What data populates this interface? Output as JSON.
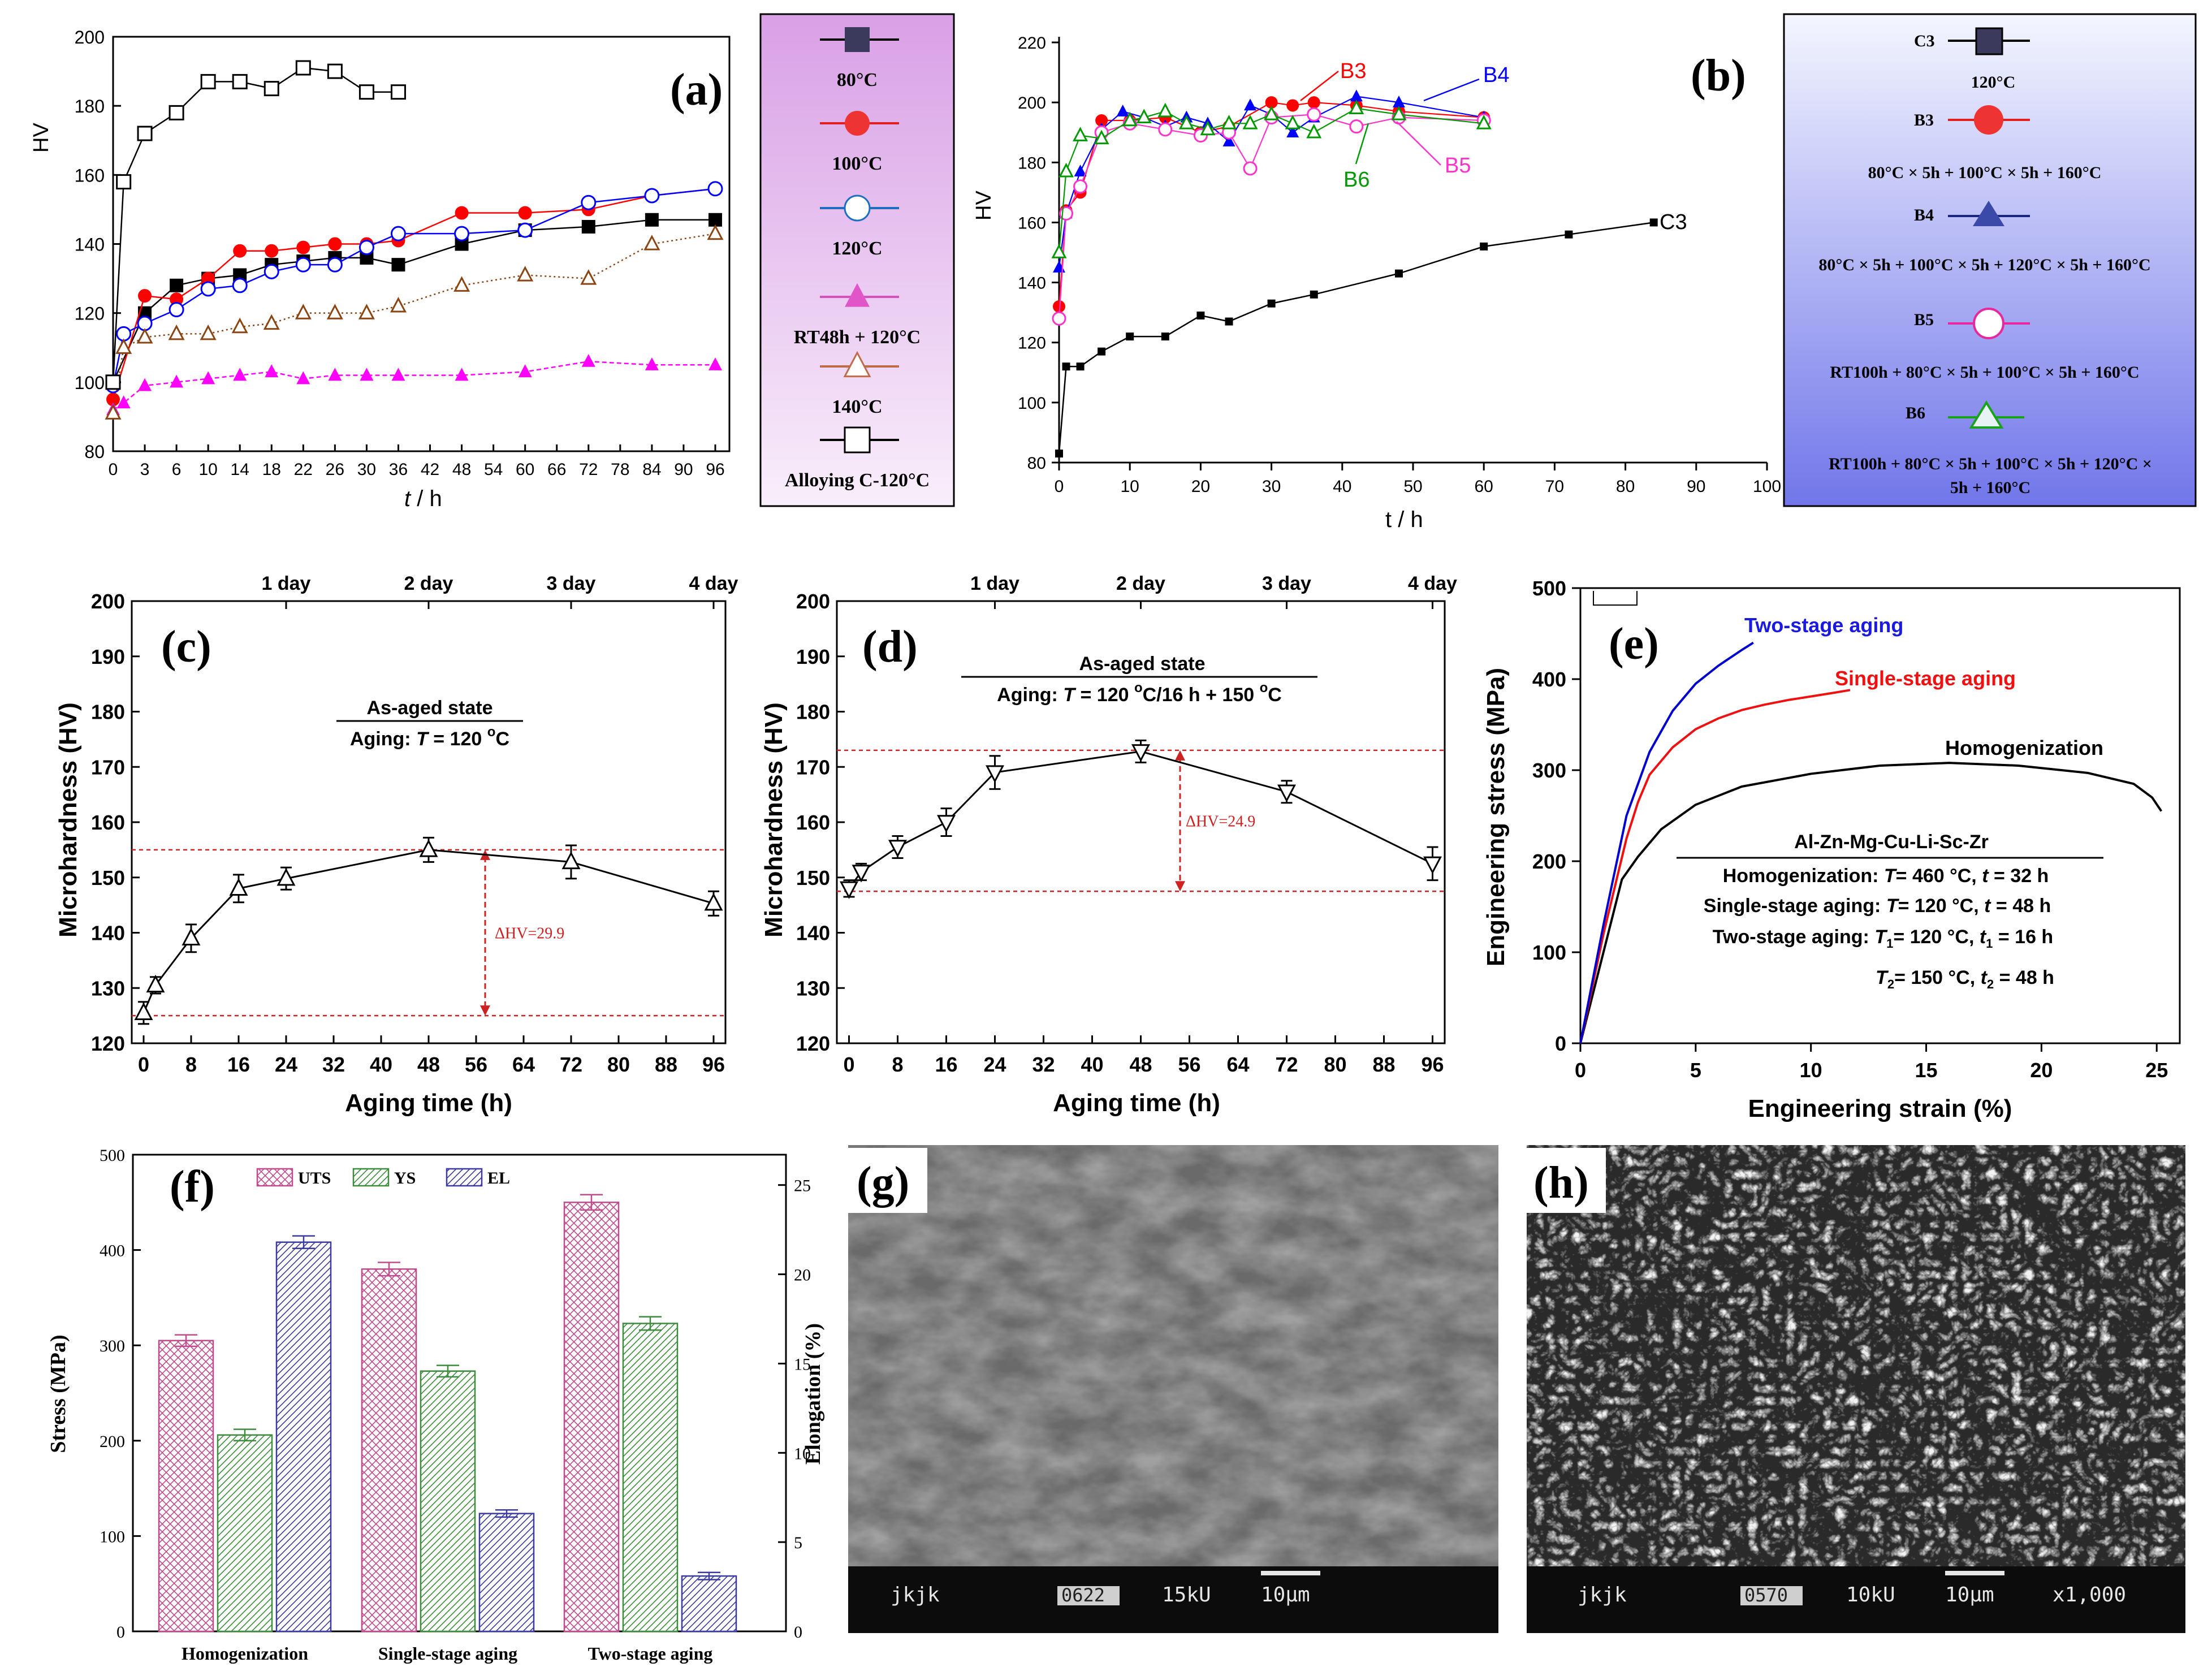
{
  "panels": {
    "a": {
      "label": "(a)",
      "ylabel": "HV",
      "xlabel_t": "t",
      "xlabel_rest": " / h",
      "xticks": [
        "0",
        "3",
        "6",
        "10",
        "14",
        "18",
        "22",
        "26",
        "30",
        "36",
        "42",
        "48",
        "54",
        "60",
        "66",
        "72",
        "78",
        "84",
        "90",
        "96"
      ],
      "yticks": [
        "80",
        "100",
        "120",
        "140",
        "160",
        "180",
        "200"
      ],
      "legend": [
        "80°C",
        "100°C",
        "120°C",
        "RT48h + 120°C",
        "140°C",
        "Alloying C-120°C"
      ],
      "legend_bg": [
        "#d9a0e6",
        "#f9eefb"
      ]
    },
    "b": {
      "label": "(b)",
      "ylabel": "HV",
      "xlabel": "t / h",
      "xticks": [
        "0",
        "10",
        "20",
        "30",
        "40",
        "50",
        "60",
        "70",
        "80",
        "90",
        "100"
      ],
      "yticks": [
        "80",
        "100",
        "120",
        "140",
        "160",
        "180",
        "200",
        "220"
      ],
      "annotations": [
        "B3",
        "B4",
        "B5",
        "B6",
        "C3"
      ],
      "legend": {
        "c3": "C3",
        "c3_temp": "120°C",
        "b3": "B3",
        "b3_desc": "80°C × 5h + 100°C × 5h + 160°C",
        "b4": "B4",
        "b4_desc": "80°C × 5h + 100°C × 5h + 120°C × 5h + 160°C",
        "b5": "B5",
        "b5_desc": "RT100h + 80°C × 5h + 100°C × 5h + 160°C",
        "b6": "B6",
        "b6_desc1": "RT100h + 80°C × 5h + 100°C × 5h + 120°C ×",
        "b6_desc2": "5h + 160°C"
      },
      "legend_bg": [
        "#f4f6ff",
        "#7176ea"
      ]
    },
    "c": {
      "label": "(c)",
      "ylabel": "Microhardness (HV)",
      "xlabel": "Aging time (h)",
      "xticks": [
        "0",
        "8",
        "16",
        "24",
        "32",
        "40",
        "48",
        "56",
        "64",
        "72",
        "80",
        "88",
        "96"
      ],
      "yticks": [
        "120",
        "130",
        "140",
        "150",
        "160",
        "170",
        "180",
        "190",
        "200"
      ],
      "top_ticks": [
        "1 day",
        "2 day",
        "3 day",
        "4 day"
      ],
      "state": "As-aged state",
      "aging_prefix": "Aging: ",
      "aging_T": "T",
      "aging_rest": " = 120 ",
      "aging_sup": "o",
      "aging_end": "C",
      "delta": "ΔHV=29.9"
    },
    "d": {
      "label": "(d)",
      "ylabel": "Microhardness (HV)",
      "xlabel": "Aging time (h)",
      "xticks": [
        "0",
        "8",
        "16",
        "24",
        "32",
        "40",
        "48",
        "56",
        "64",
        "72",
        "80",
        "88",
        "96"
      ],
      "yticks": [
        "120",
        "130",
        "140",
        "150",
        "160",
        "170",
        "180",
        "190",
        "200"
      ],
      "top_ticks": [
        "1 day",
        "2 day",
        "3 day",
        "4 day"
      ],
      "state": "As-aged state",
      "aging_prefix": "Aging: ",
      "aging_T": "T",
      "aging_rest": " = 120 ",
      "aging_sup1": "o",
      "aging_mid": "C/16 h + 150 ",
      "aging_sup2": "o",
      "aging_end": "C",
      "delta": "ΔHV=24.9"
    },
    "e": {
      "label": "(e)",
      "ylabel": "Engineering stress (MPa)",
      "xlabel": "Engineering strain (%)",
      "xticks": [
        "0",
        "5",
        "10",
        "15",
        "20",
        "25"
      ],
      "yticks": [
        "0",
        "100",
        "200",
        "300",
        "400",
        "500"
      ],
      "curve_labels": [
        "Two-stage aging",
        "Single-stage aging",
        "Homogenization"
      ],
      "alloy": "Al-Zn-Mg-Cu-Li-Sc-Zr",
      "cond1_a": "Homogenization: ",
      "cond1_T": "T",
      "cond1_b": "= 460 °C, ",
      "cond1_t": "t",
      "cond1_c": " = 32 h",
      "cond2_a": "Single-stage aging: ",
      "cond2_T": "T",
      "cond2_b": "= 120 °C, ",
      "cond2_t": "t",
      "cond2_c": " = 48 h",
      "cond3_a": "Two-stage aging: ",
      "cond3_T": "T",
      "cond3_s1": "1",
      "cond3_b": "= 120 °C, ",
      "cond3_t": "t",
      "cond3_s2": "1",
      "cond3_c": " = 16 h",
      "cond4_T": "T",
      "cond4_s1": "2",
      "cond4_b": "= 150 °C, ",
      "cond4_t": "t",
      "cond4_s2": "2",
      "cond4_c": " = 48 h"
    },
    "f": {
      "label": "(f)",
      "ylabel_left": "Stress (MPa)",
      "ylabel_right": "Elongation (%)",
      "yticks_left": [
        "0",
        "100",
        "200",
        "300",
        "400",
        "500"
      ],
      "yticks_right": [
        "0",
        "5",
        "10",
        "15",
        "20",
        "25"
      ],
      "legend": [
        "UTS",
        "YS",
        "EL"
      ]
    },
    "g": {
      "label": "(g)",
      "scalebar": [
        "jkjk",
        "0622",
        "15kU",
        "10μm"
      ]
    },
    "h": {
      "label": "(h)",
      "scalebar": [
        "jkjk",
        "0570",
        "10kU",
        "10μm",
        "x1,000"
      ]
    }
  },
  "chart_data": [
    {
      "panel": "a",
      "type": "line",
      "xlabel": "t / h",
      "ylabel": "HV",
      "xlim": [
        0,
        96
      ],
      "ylim": [
        80,
        200
      ],
      "series": [
        {
          "name": "80°C",
          "color": "#000000",
          "marker": "filled-square",
          "x": [
            0,
            3,
            6,
            10,
            14,
            18,
            22,
            26,
            30,
            36,
            48,
            60,
            72,
            84,
            96
          ],
          "y": [
            100,
            120,
            128,
            130,
            131,
            134,
            135,
            136,
            136,
            134,
            140,
            144,
            145,
            147,
            147
          ]
        },
        {
          "name": "100°C",
          "color": "#ff0000",
          "marker": "filled-circle",
          "x": [
            0,
            3,
            6,
            10,
            14,
            18,
            22,
            26,
            30,
            36,
            48,
            60,
            72,
            84,
            96
          ],
          "y": [
            95,
            125,
            124,
            130,
            138,
            138,
            139,
            140,
            140,
            141,
            149,
            149,
            150,
            154,
            156
          ]
        },
        {
          "name": "120°C",
          "color": "#0000ff",
          "marker": "open-circle",
          "x": [
            0,
            1,
            3,
            6,
            10,
            14,
            18,
            22,
            26,
            30,
            36,
            48,
            60,
            72,
            84,
            96
          ],
          "y": [
            99,
            114,
            117,
            121,
            127,
            128,
            132,
            134,
            134,
            139,
            143,
            143,
            144,
            152,
            154,
            156
          ]
        },
        {
          "name": "RT48h + 120°C",
          "color": "#ff00ff",
          "marker": "filled-triangle",
          "dashed": true,
          "x": [
            0,
            1,
            3,
            6,
            10,
            14,
            18,
            22,
            26,
            30,
            36,
            48,
            60,
            72,
            84,
            96
          ],
          "y": [
            92,
            94,
            99,
            100,
            101,
            102,
            103,
            101,
            102,
            102,
            102,
            102,
            103,
            106,
            105,
            105
          ]
        },
        {
          "name": "140°C",
          "color": "#8b4513",
          "marker": "open-triangle",
          "dotted": true,
          "x": [
            0,
            1,
            3,
            6,
            10,
            14,
            18,
            22,
            26,
            30,
            36,
            48,
            60,
            72,
            84,
            96
          ],
          "y": [
            91,
            110,
            113,
            114,
            114,
            116,
            117,
            120,
            120,
            120,
            122,
            128,
            131,
            130,
            140,
            143
          ]
        },
        {
          "name": "Alloying C-120°C",
          "color": "#000000",
          "marker": "open-square",
          "x": [
            0,
            1,
            3,
            6,
            10,
            14,
            18,
            22,
            26,
            30,
            36
          ],
          "y": [
            100,
            158,
            172,
            178,
            187,
            187,
            185,
            191,
            190,
            184,
            184
          ]
        }
      ]
    },
    {
      "panel": "b",
      "type": "line",
      "xlabel": "t / h",
      "ylabel": "HV",
      "xlim": [
        0,
        100
      ],
      "ylim": [
        80,
        220
      ],
      "series": [
        {
          "name": "C3",
          "color": "#000000",
          "marker": "filled-square",
          "x": [
            0,
            1,
            3,
            6,
            10,
            15,
            20,
            24,
            30,
            36,
            48,
            60,
            72,
            84
          ],
          "y": [
            83,
            112,
            112,
            117,
            122,
            122,
            129,
            127,
            133,
            136,
            143,
            152,
            156,
            160
          ]
        },
        {
          "name": "B3",
          "color": "#ff0000",
          "marker": "filled-circle",
          "x": [
            0,
            1,
            3,
            6,
            10,
            15,
            20,
            24,
            30,
            33,
            36,
            42,
            48,
            60
          ],
          "y": [
            132,
            164,
            170,
            194,
            194,
            195,
            190,
            192,
            200,
            199,
            200,
            199,
            197,
            195
          ]
        },
        {
          "name": "B4",
          "color": "#0000ff",
          "marker": "filled-triangle",
          "x": [
            0,
            1,
            3,
            6,
            9,
            12,
            15,
            18,
            21,
            24,
            27,
            30,
            33,
            36,
            42,
            48,
            60
          ],
          "y": [
            145,
            163,
            177,
            191,
            197,
            195,
            192,
            195,
            193,
            187,
            199,
            196,
            190,
            195,
            202,
            200,
            195
          ]
        },
        {
          "name": "B5",
          "color": "#ff33cc",
          "marker": "open-circle",
          "x": [
            0,
            1,
            3,
            6,
            10,
            15,
            20,
            24,
            27,
            30,
            36,
            42,
            48,
            60
          ],
          "y": [
            128,
            163,
            172,
            190,
            193,
            191,
            189,
            190,
            178,
            195,
            196,
            192,
            195,
            194
          ]
        },
        {
          "name": "B6",
          "color": "#009900",
          "marker": "open-triangle",
          "x": [
            0,
            1,
            3,
            6,
            10,
            12,
            15,
            18,
            21,
            24,
            27,
            30,
            33,
            36,
            42,
            48,
            60
          ],
          "y": [
            150,
            177,
            189,
            188,
            194,
            195,
            197,
            193,
            191,
            193,
            193,
            196,
            193,
            190,
            198,
            196,
            193
          ]
        }
      ]
    },
    {
      "panel": "c",
      "type": "line",
      "title": "As-aged state",
      "xlabel": "Aging time (h)",
      "ylabel": "Microhardness (HV)",
      "xlim": [
        -2,
        98
      ],
      "ylim": [
        120,
        200
      ],
      "series": [
        {
          "name": "",
          "marker": "open-triangle",
          "x": [
            0,
            2,
            8,
            16,
            24,
            48,
            72,
            96
          ],
          "y": [
            125.5,
            130.5,
            139,
            148,
            149.8,
            155,
            152.8,
            145.3
          ],
          "err": [
            2,
            1.5,
            2.5,
            2.5,
            2,
            2.2,
            3,
            2.2
          ]
        }
      ],
      "reference_lines": [
        155,
        125
      ],
      "annotation": "ΔHV=29.9"
    },
    {
      "panel": "d",
      "type": "line",
      "title": "As-aged state",
      "xlabel": "Aging time (h)",
      "ylabel": "Microhardness (HV)",
      "xlim": [
        -2,
        98
      ],
      "ylim": [
        120,
        200
      ],
      "series": [
        {
          "name": "",
          "marker": "open-inverted-triangle",
          "x": [
            0,
            2,
            8,
            16,
            24,
            48,
            72,
            96
          ],
          "y": [
            148,
            151,
            155.5,
            160,
            169,
            172.8,
            165.5,
            152.5
          ],
          "err": [
            1.5,
            1.5,
            2,
            2.5,
            3,
            2,
            2,
            3
          ]
        }
      ],
      "reference_lines": [
        173,
        147.5
      ],
      "annotation": "ΔHV=24.9"
    },
    {
      "panel": "e",
      "type": "line",
      "xlabel": "Engineering strain (%)",
      "ylabel": "Engineering stress (MPa)",
      "xlim": [
        0,
        26
      ],
      "ylim": [
        0,
        500
      ],
      "series": [
        {
          "name": "Two-stage aging",
          "color": "#0000cc",
          "x": [
            0,
            1,
            2,
            3,
            4,
            5,
            6,
            7,
            7.5
          ],
          "y": [
            0,
            130,
            250,
            320,
            365,
            395,
            415,
            432,
            440
          ]
        },
        {
          "name": "Single-stage aging",
          "color": "#ee1111",
          "x": [
            0,
            1,
            2,
            2.5,
            3,
            4,
            5,
            6,
            7,
            8,
            9,
            10,
            11,
            11.7
          ],
          "y": [
            0,
            120,
            225,
            265,
            295,
            325,
            345,
            357,
            366,
            372,
            377,
            381,
            385,
            388
          ]
        },
        {
          "name": "Homogenization",
          "color": "#000000",
          "x": [
            0,
            1,
            1.8,
            2.5,
            3.5,
            5,
            7,
            10,
            13,
            16,
            19,
            22,
            24,
            24.8,
            25.2
          ],
          "y": [
            0,
            100,
            180,
            205,
            235,
            262,
            282,
            296,
            305,
            308,
            305,
            297,
            285,
            270,
            255
          ]
        }
      ]
    },
    {
      "panel": "f",
      "type": "bar",
      "categories": [
        "Homogenization",
        "Single-stage aging",
        "Two-stage aging"
      ],
      "ylabel": "Stress (MPa)",
      "y2label": "Elongation (%)",
      "ylim": [
        0,
        500
      ],
      "y2lim": [
        0,
        26.7
      ],
      "series": [
        {
          "name": "UTS",
          "axis": "left",
          "values": [
            305,
            380,
            450
          ],
          "err": [
            6,
            7,
            8
          ]
        },
        {
          "name": "YS",
          "axis": "left",
          "values": [
            206,
            273,
            323
          ],
          "err": [
            6,
            6,
            7
          ]
        },
        {
          "name": "EL",
          "axis": "right",
          "values": [
            21.8,
            6.6,
            3.1
          ],
          "err": [
            0.35,
            0.2,
            0.2
          ]
        }
      ]
    }
  ]
}
